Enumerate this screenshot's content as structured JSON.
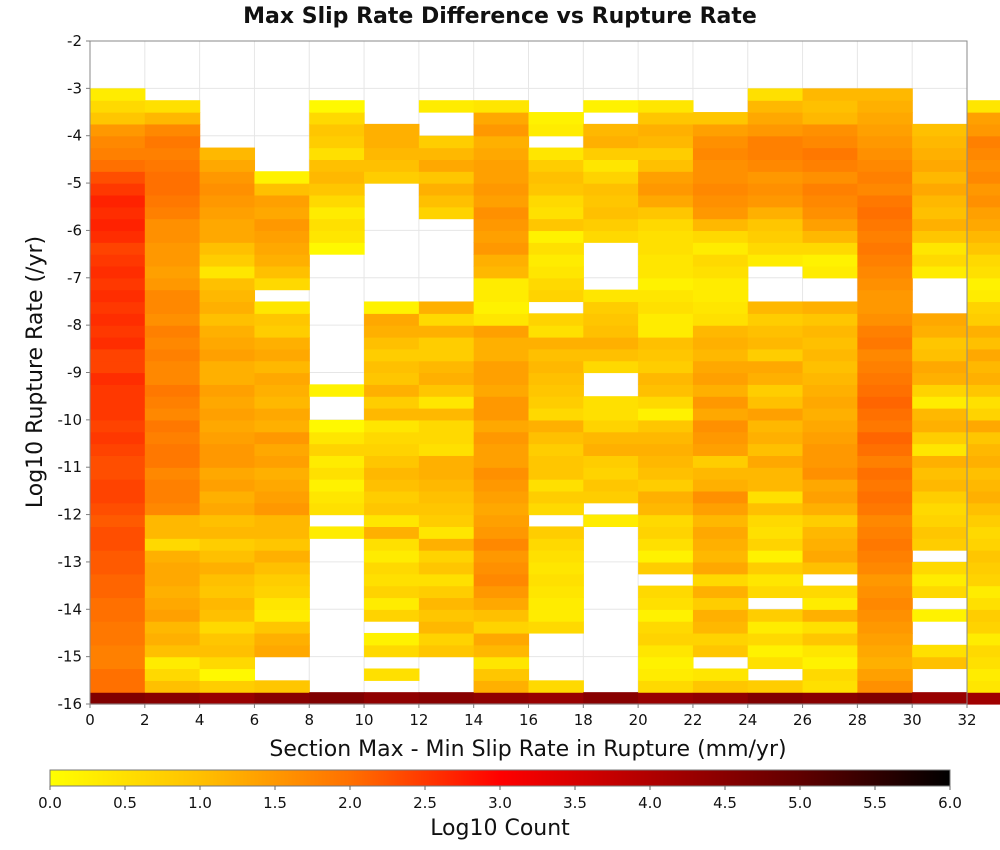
{
  "chart_data": {
    "type": "heatmap",
    "title": "Max Slip Rate Difference vs Rupture Rate",
    "xlabel": "Section Max - Min Slip Rate in Rupture (mm/yr)",
    "ylabel": "Log10 Rupture Rate (/yr)",
    "xlim": [
      0,
      32
    ],
    "ylim": [
      -16,
      -2
    ],
    "x_ticks": [
      "0",
      "2",
      "4",
      "6",
      "8",
      "10",
      "12",
      "14",
      "16",
      "18",
      "20",
      "22",
      "24",
      "26",
      "28",
      "30",
      "32"
    ],
    "y_ticks": [
      "-2",
      "-3",
      "-4",
      "-5",
      "-6",
      "-7",
      "-8",
      "-9",
      "-10",
      "-11",
      "-12",
      "-13",
      "-14",
      "-15",
      "-16"
    ],
    "x_bin_width": 2,
    "y_bin_height": 0.25,
    "y_bin_start": -16,
    "rows_from_bottom": 52,
    "columns": [
      [
        4.6,
        2.0,
        2.0,
        1.8,
        1.8,
        1.9,
        1.9,
        2.0,
        2.0,
        2.1,
        2.1,
        2.2,
        2.2,
        2.3,
        2.3,
        2.2,
        2.3,
        2.4,
        2.4,
        2.3,
        2.3,
        2.4,
        2.5,
        2.4,
        2.5,
        2.5,
        2.5,
        2.6,
        2.4,
        2.4,
        2.6,
        2.5,
        2.6,
        2.5,
        2.6,
        2.5,
        2.6,
        2.5,
        2.4,
        2.6,
        2.7,
        2.6,
        2.7,
        2.5,
        2.3,
        2.0,
        1.8,
        1.7,
        1.5,
        0.9,
        0.6,
        0.3
      ],
      [
        4.5,
        1.0,
        0.6,
        0.3,
        1.0,
        1.2,
        1.1,
        1.4,
        1.3,
        1.2,
        1.3,
        1.3,
        1.2,
        0.6,
        1.1,
        1.1,
        1.7,
        1.8,
        1.8,
        1.7,
        1.9,
        1.9,
        1.8,
        1.9,
        1.7,
        1.8,
        1.9,
        1.7,
        1.7,
        1.8,
        1.7,
        1.8,
        1.6,
        1.7,
        1.7,
        1.5,
        1.4,
        1.5,
        1.5,
        1.6,
        1.6,
        1.8,
        1.9,
        2.0,
        2.0,
        1.9,
        1.8,
        1.9,
        1.7,
        1.1,
        0.5,
        null
      ],
      [
        4.3,
        0.8,
        0.1,
        0.6,
        1.0,
        0.9,
        0.6,
        1.0,
        1.1,
        0.9,
        1.0,
        1.2,
        1.0,
        0.8,
        1.1,
        1.0,
        1.3,
        1.2,
        1.4,
        1.3,
        1.5,
        1.5,
        1.4,
        1.3,
        1.4,
        1.3,
        1.4,
        1.2,
        1.2,
        1.4,
        1.3,
        1.2,
        1.0,
        1.2,
        1.1,
        1.0,
        0.4,
        0.8,
        1.0,
        1.3,
        1.3,
        1.4,
        1.5,
        1.6,
        1.5,
        1.3,
        1.1,
        null,
        null,
        null,
        null,
        null
      ],
      [
        4.5,
        0.9,
        null,
        null,
        1.3,
        1.2,
        0.9,
        0.3,
        0.4,
        0.7,
        0.8,
        1.0,
        1.2,
        0.9,
        1.1,
        1.1,
        1.5,
        1.4,
        1.3,
        1.2,
        1.4,
        1.3,
        1.5,
        1.2,
        1.3,
        1.1,
        1.2,
        1.3,
        1.1,
        1.3,
        1.2,
        0.8,
        0.9,
        0.4,
        null,
        0.6,
        1.0,
        1.2,
        1.3,
        1.4,
        1.5,
        1.3,
        1.4,
        1.0,
        0.2,
        null,
        null,
        null,
        null,
        null,
        null,
        null
      ],
      [
        4.6,
        null,
        null,
        null,
        null,
        null,
        null,
        null,
        null,
        null,
        null,
        null,
        null,
        null,
        0.3,
        null,
        0.5,
        0.4,
        0.2,
        0.5,
        0.3,
        0.7,
        0.4,
        0.1,
        null,
        null,
        0.2,
        null,
        null,
        null,
        null,
        null,
        null,
        null,
        null,
        null,
        null,
        null,
        0.1,
        0.4,
        0.5,
        0.3,
        0.6,
        0.9,
        1.1,
        1.0,
        0.5,
        0.8,
        0.9,
        0.6,
        0.1,
        null
      ],
      [
        4.4,
        null,
        0.5,
        null,
        0.6,
        0.2,
        null,
        0.7,
        0.3,
        0.7,
        0.5,
        0.6,
        0.3,
        0.5,
        1.2,
        0.4,
        0.9,
        0.8,
        1.0,
        1.1,
        0.9,
        0.7,
        0.6,
        0.4,
        1.1,
        0.8,
        1.2,
        0.9,
        1.0,
        0.8,
        1.0,
        1.2,
        1.3,
        0.2,
        null,
        null,
        null,
        null,
        null,
        null,
        null,
        null,
        null,
        null,
        0.8,
        1.0,
        1.1,
        1.2,
        1.2,
        null,
        null,
        null,
        null
      ],
      [
        4.5,
        null,
        null,
        null,
        0.9,
        0.7,
        1.1,
        0.9,
        1.1,
        0.8,
        0.5,
        0.9,
        0.7,
        1.2,
        0.4,
        0.8,
        0.9,
        1.0,
        1.1,
        1.2,
        1.2,
        0.5,
        0.6,
        0.6,
        1.1,
        0.4,
        0.9,
        1.2,
        1.1,
        0.8,
        0.8,
        1.2,
        0.6,
        1.2,
        null,
        null,
        null,
        null,
        null,
        null,
        null,
        0.7,
        1.0,
        1.2,
        0.9,
        1.3,
        1.1,
        0.8,
        null,
        null,
        0.3,
        null
      ],
      [
        4.4,
        1.2,
        0.9,
        0.4,
        1.1,
        1.3,
        0.7,
        1.0,
        1.3,
        1.5,
        1.7,
        1.6,
        1.5,
        1.7,
        1.5,
        1.4,
        1.3,
        1.4,
        1.5,
        1.6,
        1.4,
        1.4,
        1.5,
        1.3,
        1.5,
        1.5,
        1.3,
        1.4,
        1.4,
        1.2,
        1.2,
        1.4,
        0.4,
        0.2,
        0.3,
        0.3,
        1.1,
        1.2,
        1.5,
        1.4,
        1.5,
        1.6,
        1.4,
        1.5,
        1.4,
        1.4,
        1.3,
        1.2,
        1.5,
        1.3,
        0.4,
        null
      ],
      [
        4.3,
        0.6,
        null,
        null,
        null,
        null,
        0.6,
        0.3,
        0.3,
        0.4,
        0.5,
        0.4,
        0.5,
        0.6,
        0.8,
        null,
        0.6,
        0.8,
        0.5,
        0.9,
        0.9,
        0.8,
        1.0,
        1.2,
        0.6,
        0.8,
        0.9,
        1.0,
        1.1,
        1.0,
        1.2,
        0.5,
        0.7,
        null,
        0.7,
        0.6,
        0.4,
        0.3,
        0.5,
        0.2,
        0.9,
        0.5,
        0.6,
        0.9,
        1.0,
        0.8,
        0.4,
        null,
        0.3,
        0.2,
        null,
        null
      ],
      [
        4.5,
        null,
        null,
        null,
        null,
        null,
        null,
        null,
        null,
        null,
        null,
        null,
        null,
        null,
        null,
        0.3,
        null,
        0.8,
        0.9,
        0.7,
        0.8,
        1.2,
        1.1,
        0.7,
        0.5,
        0.5,
        null,
        null,
        0.6,
        1.0,
        1.2,
        1.0,
        0.9,
        0.8,
        0.4,
        null,
        null,
        null,
        null,
        0.6,
        0.8,
        1.0,
        0.9,
        1.0,
        0.7,
        0.4,
        0.8,
        1.2,
        1.1,
        null,
        0.2,
        null
      ],
      [
        4.3,
        0.6,
        0.3,
        0.2,
        0.4,
        0.7,
        0.6,
        0.2,
        0.5,
        0.6,
        null,
        0.8,
        0.2,
        0.5,
        0.7,
        0.6,
        1.1,
        1.2,
        0.8,
        1.0,
        1.1,
        1.2,
        1.1,
        0.9,
        0.2,
        0.6,
        1.0,
        1.1,
        0.8,
        0.9,
        1.0,
        0.3,
        0.3,
        0.5,
        0.4,
        0.2,
        0.4,
        0.4,
        0.5,
        0.5,
        0.6,
        0.9,
        1.3,
        1.5,
        1.4,
        1.0,
        0.8,
        1.1,
        1.2,
        0.9,
        0.4,
        null
      ],
      [
        4.4,
        0.9,
        0.4,
        null,
        0.9,
        0.7,
        1.1,
        1.2,
        0.8,
        1.2,
        0.6,
        1.3,
        1.1,
        1.2,
        1.3,
        1.1,
        1.4,
        1.6,
        1.2,
        1.1,
        0.8,
        1.4,
        1.5,
        1.6,
        1.3,
        1.5,
        1.2,
        1.4,
        1.3,
        1.1,
        1.2,
        1.1,
        0.5,
        0.4,
        0.3,
        0.3,
        0.5,
        0.6,
        0.3,
        0.6,
        1.1,
        1.5,
        1.6,
        1.7,
        1.6,
        1.6,
        1.7,
        1.6,
        1.4,
        0.9,
        null,
        null
      ],
      [
        4.6,
        0.8,
        null,
        0.5,
        0.2,
        0.6,
        0.3,
        0.8,
        null,
        0.6,
        0.4,
        0.8,
        0.2,
        0.7,
        0.5,
        0.6,
        1.0,
        0.5,
        1.1,
        1.1,
        1.3,
        1.0,
        1.2,
        1.1,
        1.4,
        1.0,
        0.8,
        1.2,
        1.3,
        0.8,
        1.1,
        1.0,
        0.8,
        1.1,
        null,
        null,
        null,
        0.3,
        0.6,
        0.8,
        0.9,
        1.2,
        1.5,
        1.6,
        1.5,
        1.7,
        1.8,
        1.8,
        1.5,
        1.3,
        1.1,
        0.5
      ],
      [
        4.5,
        0.5,
        0.6,
        0.2,
        0.4,
        0.9,
        0.5,
        1.2,
        0.3,
        0.6,
        null,
        1.0,
        1.3,
        1.2,
        1.1,
        0.8,
        1.2,
        1.4,
        1.3,
        1.6,
        1.5,
        1.5,
        1.4,
        1.3,
        1.2,
        1.3,
        1.2,
        1.1,
        1.0,
        1.1,
        1.0,
        1.1,
        0.9,
        1.2,
        null,
        null,
        0.3,
        0.2,
        0.6,
        1.1,
        1.4,
        1.6,
        1.7,
        1.8,
        1.6,
        1.8,
        1.9,
        1.7,
        1.6,
        1.1,
        1.0,
        1.1
      ],
      [
        4.6,
        1.6,
        1.4,
        1.2,
        1.3,
        1.4,
        1.5,
        1.6,
        1.7,
        1.6,
        1.5,
        1.7,
        1.8,
        1.9,
        1.8,
        1.7,
        1.9,
        2.0,
        1.9,
        2.0,
        1.8,
        2.0,
        2.1,
        1.9,
        2.0,
        2.1,
        2.0,
        1.9,
        1.8,
        1.7,
        1.9,
        1.8,
        1.6,
        1.5,
        1.5,
        1.6,
        1.7,
        1.8,
        1.9,
        1.8,
        1.9,
        2.0,
        1.9,
        1.7,
        1.8,
        1.7,
        1.6,
        1.5,
        1.4,
        1.3,
        1.2,
        1.1
      ],
      [
        4.3,
        null,
        null,
        1.0,
        0.5,
        null,
        null,
        0.2,
        null,
        0.6,
        0.3,
        0.6,
        null,
        0.8,
        0.9,
        0.7,
        0.6,
        0.8,
        1.1,
        1.0,
        1.2,
        0.4,
        0.8,
        1.2,
        1.1,
        0.3,
        0.7,
        1.2,
        1.3,
        1.0,
        0.9,
        1.2,
        1.3,
        null,
        null,
        null,
        0.3,
        0.6,
        0.4,
        0.9,
        1.2,
        1.0,
        1.1,
        1.3,
        1.1,
        1.3,
        1.2,
        1.1,
        1.0,
        null,
        null,
        null
      ],
      [
        4.2,
        0.4,
        0.3,
        0.5,
        0.6,
        0.3,
        0.7,
        0.8,
        0.5,
        0.3,
        0.7,
        0.8,
        0.9,
        0.7,
        0.6,
        0.8,
        1.0,
        1.2,
        1.1,
        1.0,
        1.2,
        1.1,
        0.9,
        1.3,
        0.7,
        0.5,
        0.9,
        1.2,
        1.1,
        1.3,
        1.0,
        1.2,
        0.8,
        0.7,
        0.3,
        0.2,
        0.5,
        0.6,
        0.9,
        1.1,
        1.3,
        1.4,
        1.6,
        1.5,
        1.7,
        1.6,
        1.7,
        1.8,
        1.5,
        1.4,
        0.4,
        null
      ]
    ]
  },
  "colorbar": {
    "label": "Log10 Count",
    "min": 0.0,
    "max": 6.0,
    "ticks": [
      "0.0",
      "0.5",
      "1.0",
      "1.5",
      "2.0",
      "2.5",
      "3.0",
      "3.5",
      "4.0",
      "4.5",
      "5.0",
      "5.5",
      "6.0"
    ],
    "stops": [
      {
        "v": 0.0,
        "c": "#ffff00"
      },
      {
        "v": 1.0,
        "c": "#ffc000"
      },
      {
        "v": 2.0,
        "c": "#ff7000"
      },
      {
        "v": 3.0,
        "c": "#ff0000"
      },
      {
        "v": 4.0,
        "c": "#b00000"
      },
      {
        "v": 5.0,
        "c": "#600000"
      },
      {
        "v": 6.0,
        "c": "#000000"
      }
    ]
  },
  "colors": {
    "background": "#ffffff",
    "grid": "#e6e6e6",
    "axis": "#7f7f7f",
    "text": "#111111"
  }
}
